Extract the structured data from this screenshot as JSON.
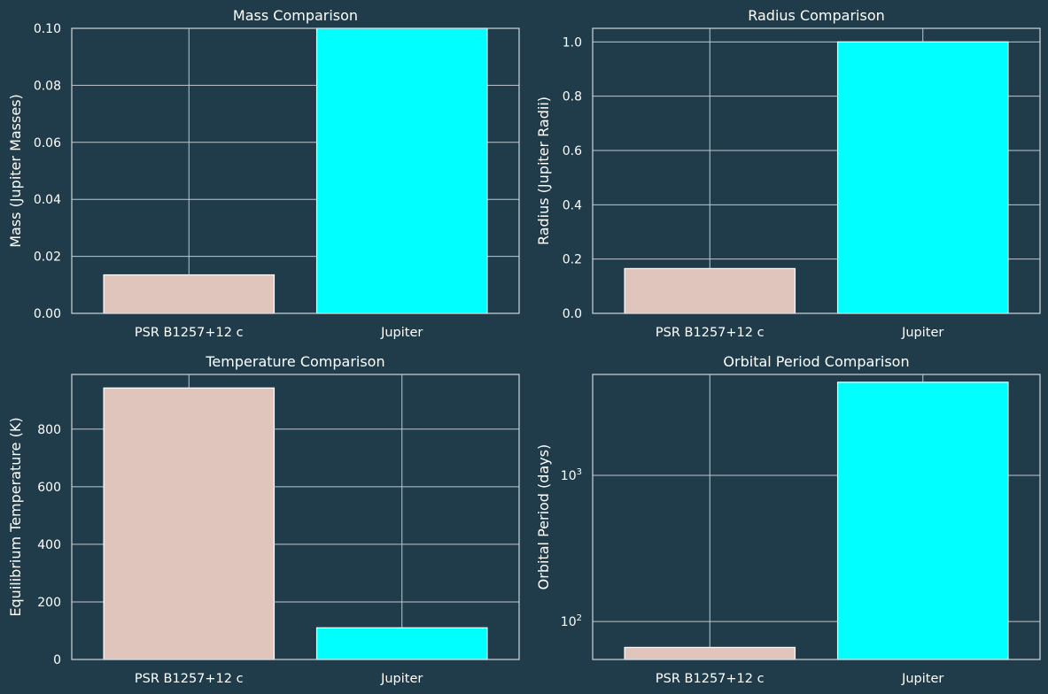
{
  "colors": {
    "background": "#203c4b",
    "grid": "#bfc6cc",
    "axis": "#d0d4d8",
    "text": "#ffffff",
    "bar_planet": "#dfc5bc",
    "bar_jupiter": "#00ffff",
    "bar_edge": "#ffffff"
  },
  "chart_data": [
    {
      "type": "bar",
      "title": "Mass Comparison",
      "categories": [
        "PSR B1257+12 c",
        "Jupiter"
      ],
      "values": [
        0.0135,
        0.1
      ],
      "xlabel": "",
      "ylabel": "Mass (Jupiter Masses)",
      "ylim": [
        0,
        0.1
      ],
      "yscale": "linear",
      "yticks": [
        0,
        0.02,
        0.04,
        0.06,
        0.08,
        0.1
      ],
      "ytick_labels": [
        "0.00",
        "0.02",
        "0.04",
        "0.06",
        "0.08",
        "0.10"
      ],
      "grid": true
    },
    {
      "type": "bar",
      "title": "Radius Comparison",
      "categories": [
        "PSR B1257+12 c",
        "Jupiter"
      ],
      "values": [
        0.165,
        1.0
      ],
      "xlabel": "",
      "ylabel": "Radius (Jupiter Radii)",
      "ylim": [
        0,
        1.05
      ],
      "yscale": "linear",
      "yticks": [
        0,
        0.2,
        0.4,
        0.6,
        0.8,
        1.0
      ],
      "ytick_labels": [
        "0.0",
        "0.2",
        "0.4",
        "0.6",
        "0.8",
        "1.0"
      ],
      "grid": true
    },
    {
      "type": "bar",
      "title": "Temperature Comparison",
      "categories": [
        "PSR B1257+12 c",
        "Jupiter"
      ],
      "values": [
        943,
        110
      ],
      "xlabel": "",
      "ylabel": "Equilibrium Temperature (K)",
      "ylim": [
        0,
        990
      ],
      "yscale": "linear",
      "yticks": [
        0,
        200,
        400,
        600,
        800
      ],
      "ytick_labels": [
        "0",
        "200",
        "400",
        "600",
        "800"
      ],
      "grid": true
    },
    {
      "type": "bar",
      "title": "Orbital Period Comparison",
      "categories": [
        "PSR B1257+12 c",
        "Jupiter"
      ],
      "values": [
        66.5,
        4333
      ],
      "xlabel": "",
      "ylabel": "Orbital Period (days)",
      "ylim": [
        55,
        4900
      ],
      "yscale": "log",
      "yticks": [
        100,
        1000
      ],
      "ytick_labels": [
        "10^2",
        "10^3"
      ],
      "grid": true
    }
  ]
}
